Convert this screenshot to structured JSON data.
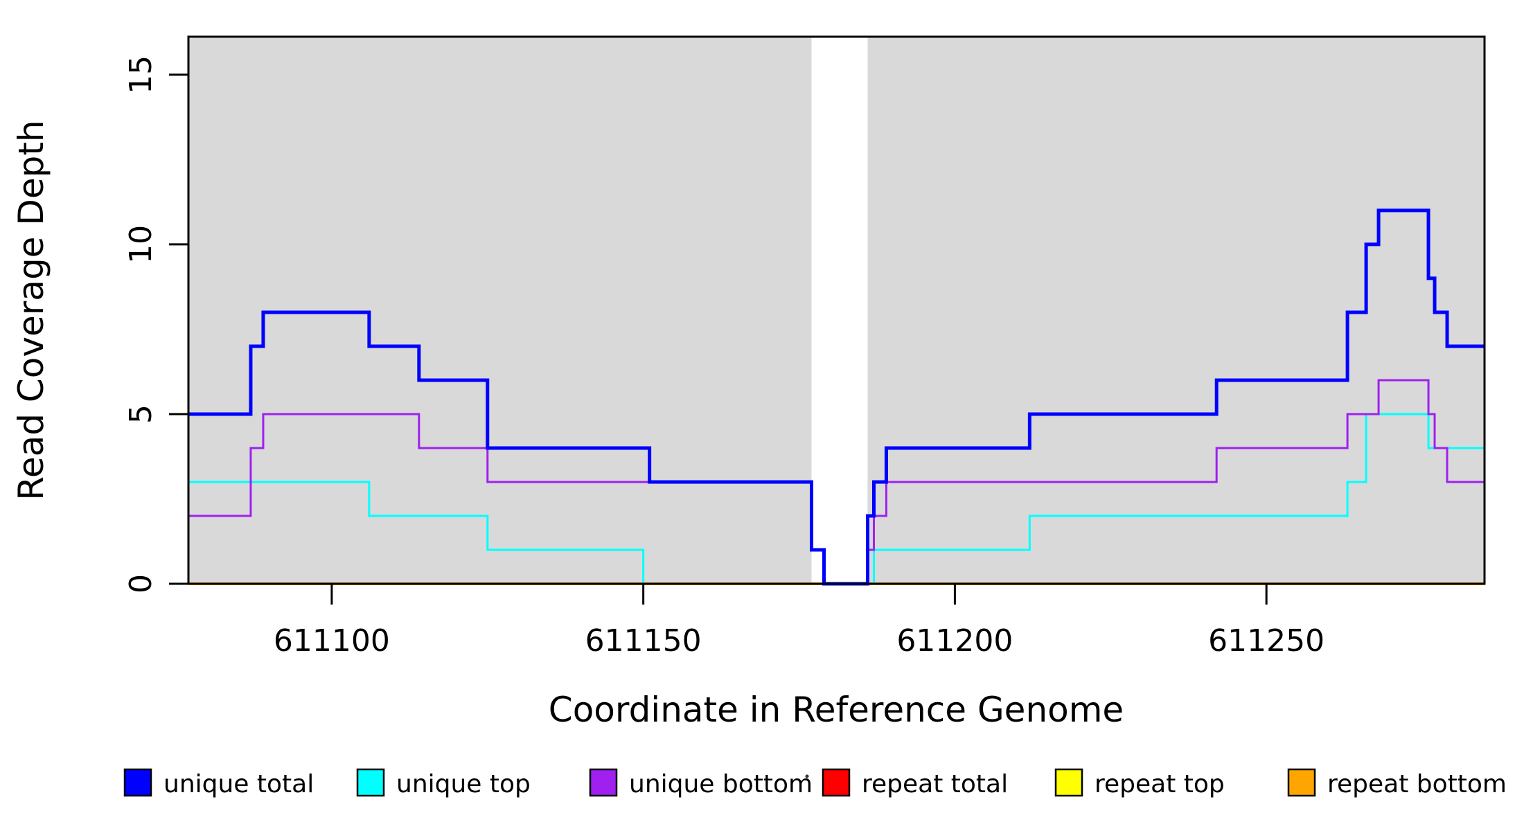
{
  "chart_data": {
    "type": "line",
    "subtype": "step",
    "title": "",
    "xlabel": "Coordinate in Reference Genome",
    "ylabel": "Read Coverage Depth",
    "xlim": [
      611077,
      611285
    ],
    "ylim": [
      0,
      16.12
    ],
    "x_ticks": [
      "611100",
      "611150",
      "611200",
      "611250"
    ],
    "x_tick_values": [
      611100,
      611150,
      611200,
      611250
    ],
    "y_ticks": [
      "0",
      "5",
      "10",
      "15"
    ],
    "y_tick_values": [
      0,
      5,
      10,
      15
    ],
    "grid": false,
    "legend_position": "bottom",
    "panel_background": "#d9d9d9",
    "panel_segments": [
      [
        611077,
        611177
      ],
      [
        611186,
        611285
      ]
    ],
    "gap": [
      611177,
      611186
    ],
    "series_end_x": 611285,
    "series": [
      {
        "name": "repeat total",
        "color": "#ff0000",
        "width": 3,
        "steps": [
          [
            611077,
            0
          ]
        ]
      },
      {
        "name": "repeat top",
        "color": "#ffff00",
        "width": 3,
        "steps": [
          [
            611077,
            0
          ]
        ]
      },
      {
        "name": "repeat bottom",
        "color": "#ffa500",
        "width": 4,
        "steps": [
          [
            611077,
            0
          ]
        ]
      },
      {
        "name": "unique top",
        "color": "#00ffff",
        "width": 3,
        "steps": [
          [
            611077,
            3
          ],
          [
            611106,
            2
          ],
          [
            611125,
            1
          ],
          [
            611150,
            0
          ],
          [
            611187,
            1
          ],
          [
            611212,
            2
          ],
          [
            611263,
            3
          ],
          [
            611266,
            5
          ],
          [
            611276,
            4
          ]
        ]
      },
      {
        "name": "unique bottom",
        "color": "#a020f0",
        "width": 3,
        "steps": [
          [
            611077,
            2
          ],
          [
            611087,
            4
          ],
          [
            611089,
            5
          ],
          [
            611114,
            4
          ],
          [
            611125,
            3
          ],
          [
            611177,
            1
          ],
          [
            611179,
            0
          ],
          [
            611186,
            1
          ],
          [
            611187,
            2
          ],
          [
            611189,
            3
          ],
          [
            611242,
            4
          ],
          [
            611263,
            5
          ],
          [
            611268,
            6
          ],
          [
            611276,
            5
          ],
          [
            611277,
            4
          ],
          [
            611279,
            3
          ]
        ]
      },
      {
        "name": "unique total",
        "color": "#0000ff",
        "width": 5,
        "steps": [
          [
            611077,
            5
          ],
          [
            611087,
            7
          ],
          [
            611089,
            8
          ],
          [
            611106,
            7
          ],
          [
            611114,
            6
          ],
          [
            611125,
            4
          ],
          [
            611151,
            3
          ],
          [
            611177,
            1
          ],
          [
            611179,
            0
          ],
          [
            611186,
            2
          ],
          [
            611187,
            3
          ],
          [
            611189,
            4
          ],
          [
            611212,
            5
          ],
          [
            611242,
            6
          ],
          [
            611263,
            8
          ],
          [
            611266,
            10
          ],
          [
            611268,
            11
          ],
          [
            611276,
            9
          ],
          [
            611277,
            8
          ],
          [
            611279,
            7
          ]
        ]
      }
    ],
    "legend": [
      {
        "label": "unique total",
        "color": "#0000ff"
      },
      {
        "label": "unique top",
        "color": "#00ffff"
      },
      {
        "label": "unique bottom",
        "color": "#a020f0"
      },
      {
        "label": "repeat total",
        "color": "#ff0000"
      },
      {
        "label": "repeat top",
        "color": "#ffff00"
      },
      {
        "label": "repeat bottom",
        "color": "#ffa500"
      }
    ],
    "artifact_dot": true
  }
}
